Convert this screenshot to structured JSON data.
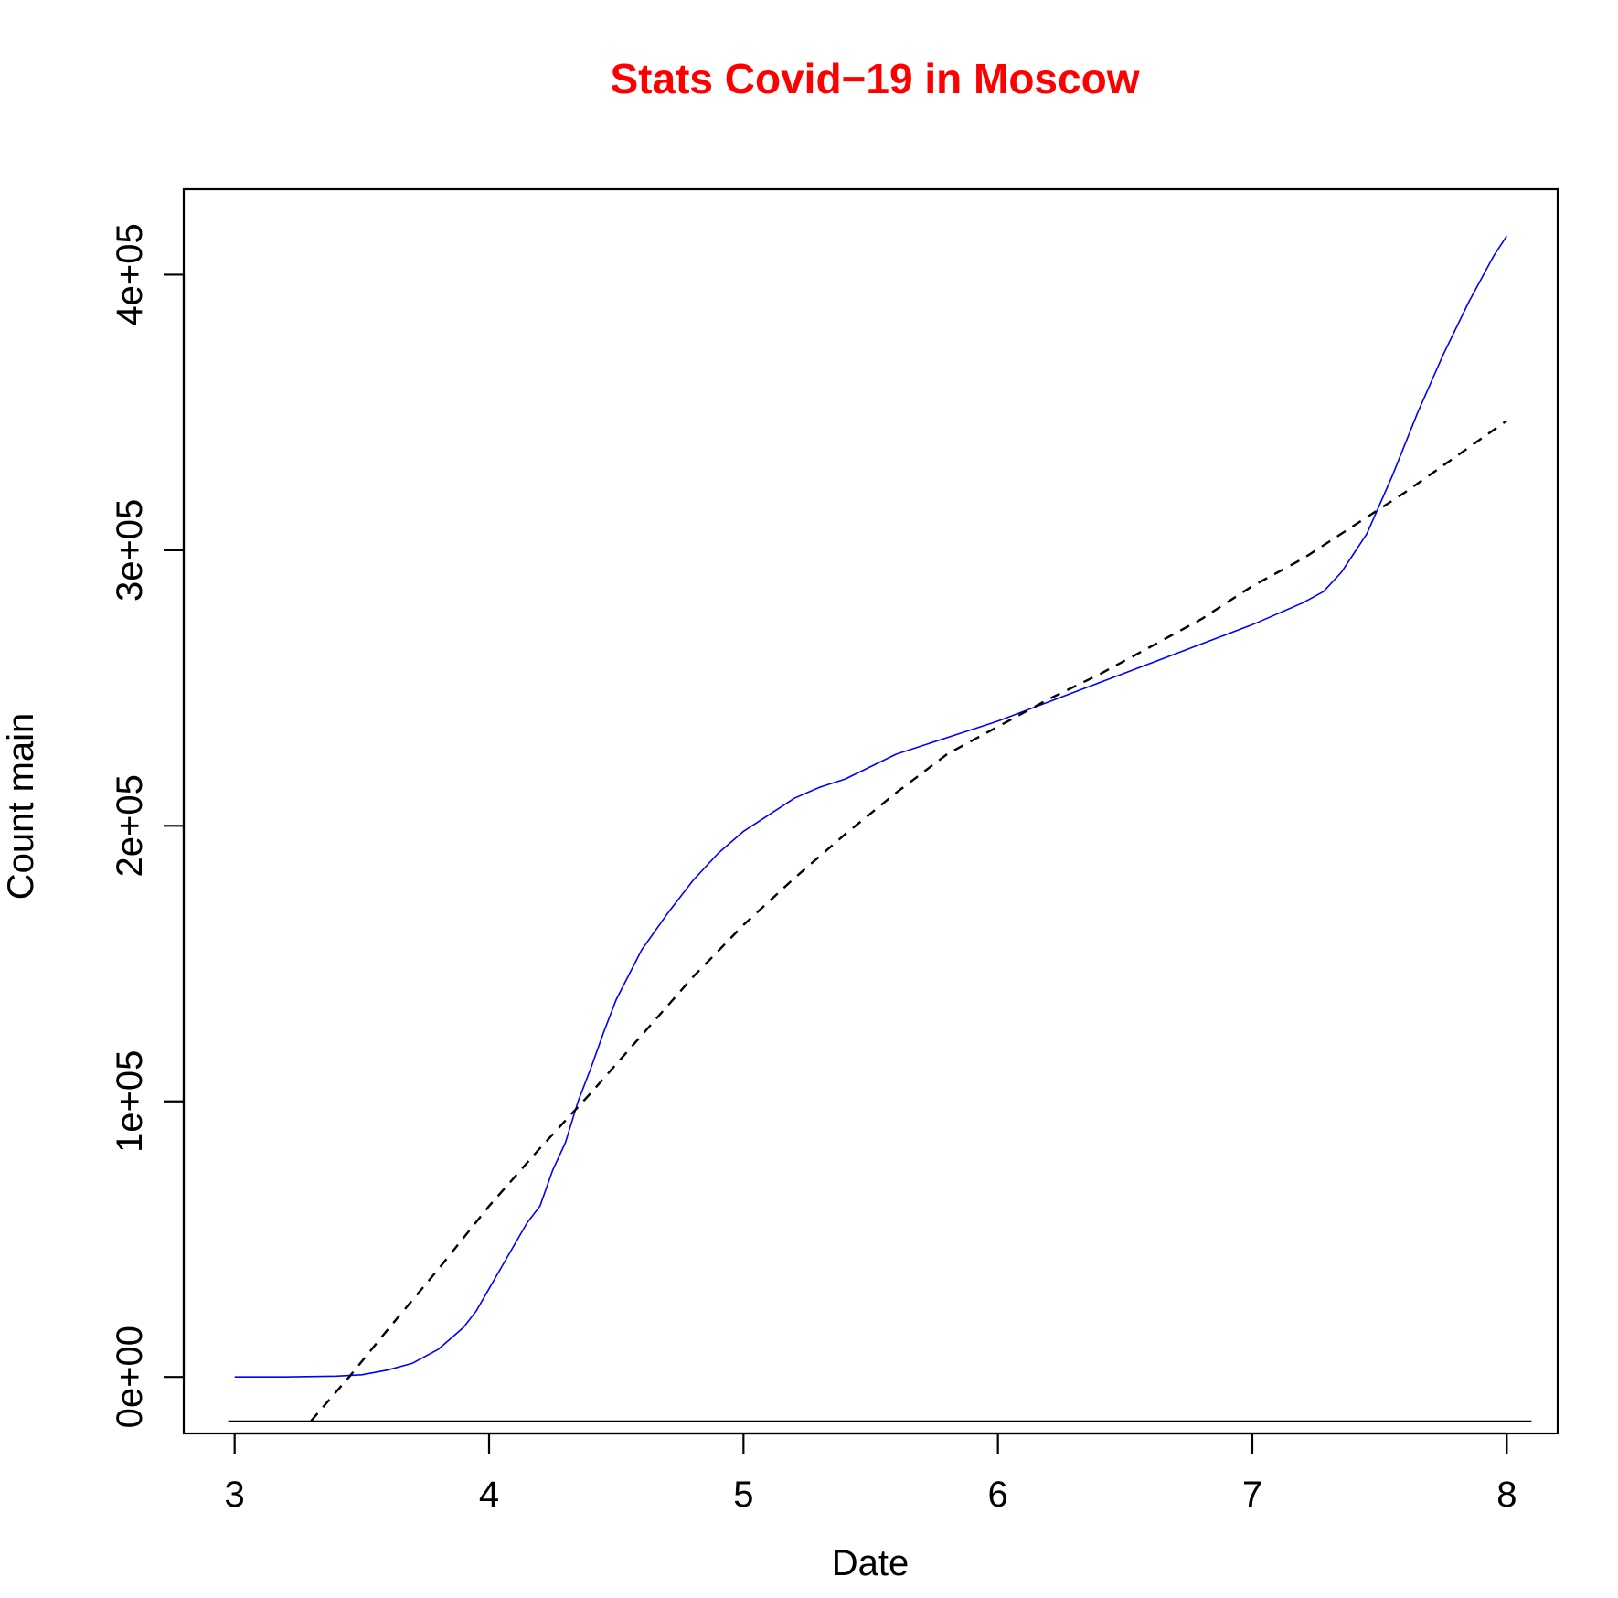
{
  "chart_data": {
    "type": "line",
    "title": "Stats Covid−19 in Moscow",
    "xlabel": "Date",
    "ylabel": "Count main",
    "xlim": [
      2.8,
      8.2
    ],
    "ylim": [
      -20500,
      431000
    ],
    "x_ticks": [
      3,
      4,
      5,
      6,
      7,
      8
    ],
    "x_tick_labels": [
      "3",
      "4",
      "5",
      "6",
      "7",
      "8"
    ],
    "y_ticks": [
      0,
      100000,
      200000,
      300000,
      400000
    ],
    "y_tick_labels": [
      "0e+00",
      "1e+05",
      "2e+05",
      "3e+05",
      "4e+05"
    ],
    "grid": false,
    "hline": {
      "y": -16000,
      "color": "#000000"
    },
    "series": [
      {
        "color": "#0000ff",
        "style": "solid",
        "x": [
          3.0,
          3.2,
          3.4,
          3.5,
          3.6,
          3.7,
          3.8,
          3.85,
          3.9,
          3.95,
          4.0,
          4.05,
          4.1,
          4.15,
          4.2,
          4.25,
          4.3,
          4.35,
          4.4,
          4.45,
          4.5,
          4.6,
          4.7,
          4.8,
          4.9,
          5.0,
          5.1,
          5.2,
          5.3,
          5.4,
          5.6,
          5.8,
          6.0,
          6.2,
          6.4,
          6.6,
          6.8,
          7.0,
          7.2,
          7.28,
          7.35,
          7.45,
          7.55,
          7.65,
          7.75,
          7.85,
          7.95,
          8.0
        ],
        "y": [
          0,
          0,
          300,
          800,
          2500,
          5000,
          10000,
          14000,
          18000,
          24000,
          32000,
          40000,
          48000,
          56000,
          62000,
          75000,
          85000,
          100000,
          112000,
          125000,
          137000,
          155000,
          168000,
          180000,
          190000,
          198000,
          204000,
          210000,
          214000,
          217000,
          226000,
          232000,
          238000,
          245000,
          252000,
          259000,
          266000,
          273000,
          281000,
          285000,
          292000,
          306000,
          327000,
          350000,
          371000,
          390000,
          407000,
          414000
        ]
      },
      {
        "color": "#000000",
        "style": "dashed",
        "x": [
          3.3,
          3.45,
          3.6,
          3.8,
          4.0,
          4.2,
          4.4,
          4.6,
          4.8,
          5.0,
          5.2,
          5.4,
          5.6,
          5.8,
          6.0,
          6.2,
          6.4,
          6.6,
          6.8,
          7.0,
          7.2,
          7.4,
          7.6,
          7.8,
          8.0
        ],
        "y": [
          -16000,
          0,
          17000,
          39000,
          62000,
          83000,
          103000,
          124000,
          145000,
          164000,
          181000,
          197000,
          212000,
          226000,
          236000,
          246000,
          255000,
          265000,
          275000,
          287000,
          297000,
          309000,
          321000,
          334000,
          347000
        ]
      }
    ],
    "colors": {
      "title": "#ff0000",
      "axis": "#000000"
    }
  }
}
